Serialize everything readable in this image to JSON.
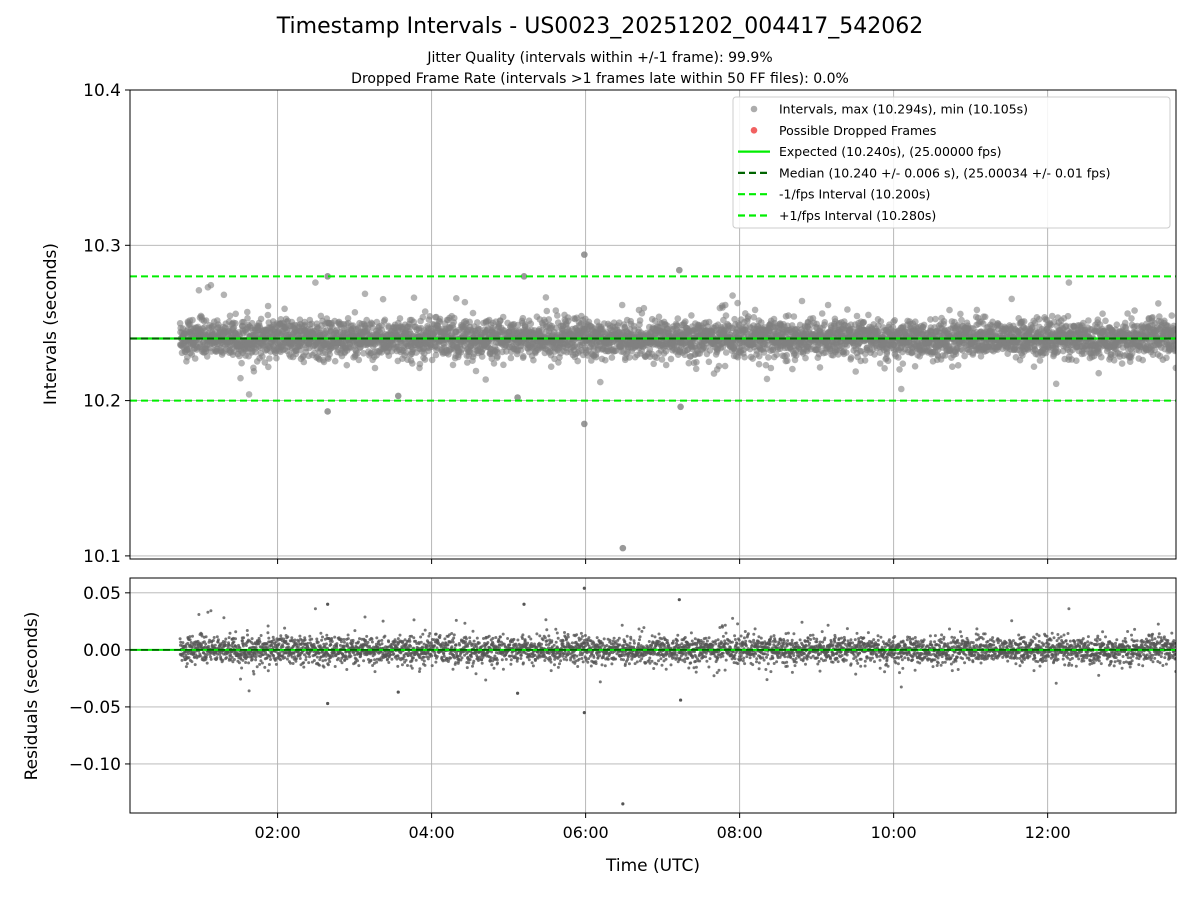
{
  "title": "Timestamp Intervals - US0023_20251202_004417_542062",
  "subtitle1": "Jitter Quality (intervals within +/-1 frame): 99.9%",
  "subtitle2": "Dropped Frame Rate (intervals >1 frames late within 50 FF files): 0.0%",
  "colors": {
    "points": "#808080",
    "dropped": "#f05050",
    "expected": "#00ee00",
    "median": "#006400",
    "fps_bounds": "#00ee00",
    "grid": "#b0b0b0"
  },
  "chart_data": [
    {
      "type": "scatter",
      "panel": "top",
      "xlabel": "",
      "ylabel": "Intervals (seconds)",
      "xlim": [
        "00:05",
        "13:40"
      ],
      "ylim": [
        10.098,
        10.4
      ],
      "yticks": [
        "10.1",
        "10.2",
        "10.3",
        "10.4"
      ],
      "ytick_values": [
        10.1,
        10.2,
        10.3,
        10.4
      ],
      "grid": true,
      "legend_position": "top-right",
      "legend": [
        {
          "label": "Intervals, max (10.294s), min (10.105s)",
          "kind": "marker",
          "color": "#909090"
        },
        {
          "label": "Possible Dropped Frames",
          "kind": "marker",
          "color": "#f05050"
        },
        {
          "label": "Expected (10.240s), (25.00000 fps)",
          "kind": "solid",
          "color": "#00ee00"
        },
        {
          "label": "Median (10.240 +/- 0.006 s), (25.00034 +/- 0.01 fps)",
          "kind": "dashed",
          "color": "#006400"
        },
        {
          "label": "-1/fps Interval (10.200s)",
          "kind": "dashed",
          "color": "#00ee00"
        },
        {
          "label": "+1/fps Interval (10.280s)",
          "kind": "dashed",
          "color": "#00ee00"
        }
      ],
      "reference_lines": {
        "expected": 10.24,
        "median": 10.24,
        "minus_1_fps": 10.2,
        "plus_1_fps": 10.28
      },
      "series": [
        {
          "name": "Intervals, max (10.294s), min (10.105s)",
          "x_start": "00:44",
          "x_end": "13:40",
          "approx_interval_s": 10.24,
          "center": 10.24,
          "std": 0.006,
          "max": 10.294,
          "min": 10.105,
          "notable_points": [
            {
              "x": "05:59",
              "y": 10.294
            },
            {
              "x": "05:59",
              "y": 10.185
            },
            {
              "x": "06:29",
              "y": 10.105
            },
            {
              "x": "07:13",
              "y": 10.284
            },
            {
              "x": "07:14",
              "y": 10.196
            },
            {
              "x": "02:39",
              "y": 10.28
            },
            {
              "x": "02:39",
              "y": 10.193
            },
            {
              "x": "05:12",
              "y": 10.28
            },
            {
              "x": "03:34",
              "y": 10.203
            },
            {
              "x": "05:07",
              "y": 10.202
            }
          ]
        },
        {
          "name": "Possible Dropped Frames",
          "points": []
        }
      ]
    },
    {
      "type": "scatter",
      "panel": "bottom",
      "xlabel": "Time (UTC)",
      "ylabel": "Residuals (seconds)",
      "xlim": [
        "00:05",
        "13:40"
      ],
      "xticks": [
        "02:00",
        "04:00",
        "06:00",
        "08:00",
        "10:00",
        "12:00"
      ],
      "ylim": [
        -0.143,
        0.063
      ],
      "yticks": [
        "−0.10",
        "−0.05",
        "0.00",
        "0.05"
      ],
      "ytick_values": [
        -0.1,
        -0.05,
        0.0,
        0.05
      ],
      "grid": true,
      "reference_lines": {
        "zero": 0.0
      },
      "series": [
        {
          "name": "Residuals",
          "center": 0.0,
          "std": 0.006,
          "max": 0.054,
          "min": -0.135
        }
      ]
    }
  ]
}
